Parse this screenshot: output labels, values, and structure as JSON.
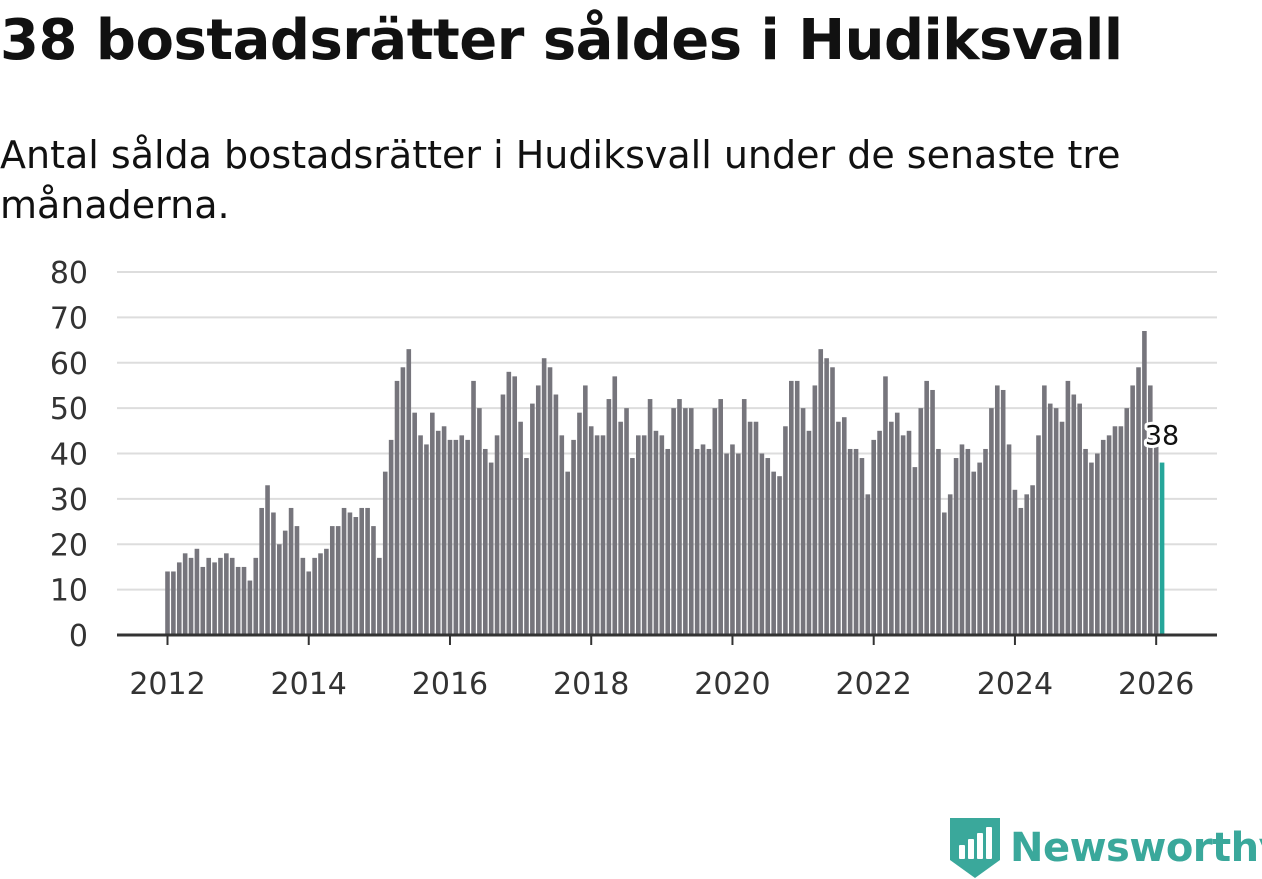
{
  "title": "38 bostadsrätter såldes i Hudiksvall",
  "subtitle": "Antal sålda bostadsrätter i Hudiksvall under de senaste tre månaderna.",
  "brand": {
    "name": "Newsworthy",
    "icon": "newsworthy-logo-icon",
    "color": "#3aa89b"
  },
  "colors": {
    "bar": "#76757c",
    "highlight": "#26a69a",
    "grid": "#dddddd",
    "axis": "#333333"
  },
  "chart_data": {
    "type": "bar",
    "title": "38 bostadsrätter såldes i Hudiksvall",
    "xlabel": "",
    "ylabel": "",
    "start": {
      "year": 2012,
      "month": 1
    },
    "x_ticks": [
      "2012",
      "2014",
      "2016",
      "2018",
      "2020",
      "2022",
      "2024",
      "2026"
    ],
    "y_ticks": [
      0,
      10,
      20,
      30,
      40,
      50,
      60,
      70,
      80
    ],
    "ylim": [
      0,
      80
    ],
    "values": [
      14,
      14,
      16,
      18,
      17,
      19,
      15,
      17,
      16,
      17,
      18,
      17,
      15,
      15,
      12,
      17,
      28,
      33,
      27,
      20,
      23,
      28,
      24,
      17,
      14,
      17,
      18,
      19,
      24,
      24,
      28,
      27,
      26,
      28,
      28,
      24,
      17,
      36,
      43,
      56,
      59,
      63,
      49,
      44,
      42,
      49,
      45,
      46,
      43,
      43,
      44,
      43,
      56,
      50,
      41,
      38,
      44,
      53,
      58,
      57,
      47,
      39,
      51,
      55,
      61,
      59,
      53,
      44,
      36,
      43,
      49,
      55,
      46,
      44,
      44,
      52,
      57,
      47,
      50,
      39,
      44,
      44,
      52,
      45,
      44,
      41,
      50,
      52,
      50,
      50,
      41,
      42,
      41,
      50,
      52,
      40,
      42,
      40,
      52,
      47,
      47,
      40,
      39,
      36,
      35,
      46,
      56,
      56,
      50,
      45,
      55,
      63,
      61,
      59,
      47,
      48,
      41,
      41,
      39,
      31,
      43,
      45,
      57,
      47,
      49,
      44,
      45,
      37,
      50,
      56,
      54,
      41,
      27,
      31,
      39,
      42,
      41,
      36,
      38,
      41,
      50,
      55,
      54,
      42,
      32,
      28,
      31,
      33,
      44,
      55,
      51,
      50,
      47,
      56,
      53,
      51,
      41,
      38,
      40,
      43,
      44,
      46,
      46,
      50,
      55,
      59,
      67,
      55,
      43,
      38
    ],
    "highlight": {
      "label": "38",
      "value": 38
    }
  }
}
